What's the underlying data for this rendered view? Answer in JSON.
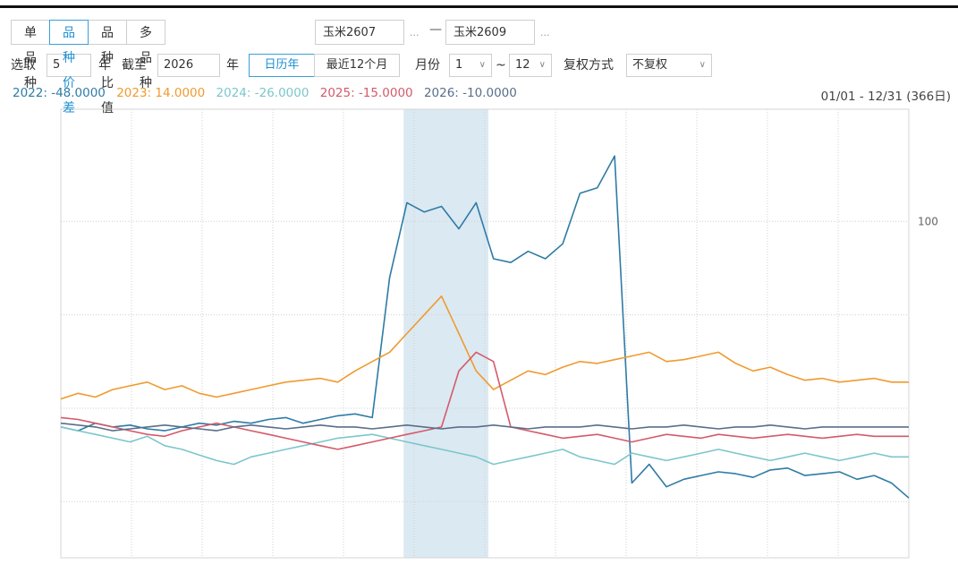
{
  "toolbar": {
    "tabs": [
      "单品种",
      "品种价差",
      "品种比值",
      "多品种"
    ],
    "active_tab": 1,
    "contract_a": "玉米2607",
    "contract_b": "玉米2609",
    "ellipsis": "...",
    "dash": "—"
  },
  "filters": {
    "select_label": "选取",
    "years": "5",
    "year_unit": "年",
    "until_label": "截至",
    "end_year": "2026",
    "end_unit": "年",
    "calendar_btn": "日历年",
    "recent_btn": "最近12个月",
    "month_label": "月份",
    "month_from": "1",
    "tilde": "~",
    "month_to": "12",
    "adjust_label": "复权方式",
    "adjust_value": "不复权"
  },
  "legend": [
    {
      "label": "2022: -48.0000",
      "color": "#2e7ba6"
    },
    {
      "label": "2023: 14.0000",
      "color": "#f09a2e"
    },
    {
      "label": "2024: -26.0000",
      "color": "#7cc6cc"
    },
    {
      "label": "2025: -15.0000",
      "color": "#d45a6a"
    },
    {
      "label": "2026: -10.0000",
      "color": "#5a6e8a"
    }
  ],
  "date_range": "01/01 - 12/31 (366日)",
  "chart_data": {
    "type": "line",
    "y_tick_labels": [
      "100"
    ],
    "ylim": [
      -80,
      160
    ],
    "series": [
      {
        "name": "2022",
        "color": "#2e7ba6",
        "values": [
          -10,
          -12,
          -8,
          -10,
          -9,
          -11,
          -12,
          -10,
          -8,
          -9,
          -7,
          -8,
          -6,
          -5,
          -8,
          -6,
          -4,
          -3,
          -5,
          70,
          110,
          105,
          108,
          96,
          110,
          80,
          78,
          84,
          80,
          88,
          115,
          118,
          135,
          -40,
          -30,
          -42,
          -38,
          -36,
          -34,
          -35,
          -37,
          -33,
          -32,
          -36,
          -35,
          -34,
          -38,
          -36,
          -40,
          -48
        ]
      },
      {
        "name": "2023",
        "color": "#f09a2e",
        "values": [
          5,
          8,
          6,
          10,
          12,
          14,
          10,
          12,
          8,
          6,
          8,
          10,
          12,
          14,
          15,
          16,
          14,
          20,
          25,
          30,
          40,
          50,
          60,
          40,
          20,
          10,
          15,
          20,
          18,
          22,
          25,
          24,
          26,
          28,
          30,
          25,
          26,
          28,
          30,
          24,
          20,
          22,
          18,
          15,
          16,
          14,
          15,
          16,
          14,
          14
        ]
      },
      {
        "name": "2024",
        "color": "#7cc6cc",
        "values": [
          -10,
          -12,
          -14,
          -16,
          -18,
          -15,
          -20,
          -22,
          -25,
          -28,
          -30,
          -26,
          -24,
          -22,
          -20,
          -18,
          -16,
          -15,
          -14,
          -16,
          -18,
          -20,
          -22,
          -24,
          -26,
          -30,
          -28,
          -26,
          -24,
          -22,
          -26,
          -28,
          -30,
          -24,
          -26,
          -28,
          -26,
          -24,
          -22,
          -24,
          -26,
          -28,
          -26,
          -24,
          -26,
          -28,
          -26,
          -24,
          -26,
          -26
        ]
      },
      {
        "name": "2025",
        "color": "#d45a6a",
        "values": [
          -5,
          -6,
          -8,
          -10,
          -12,
          -14,
          -15,
          -12,
          -10,
          -8,
          -10,
          -12,
          -14,
          -16,
          -18,
          -20,
          -22,
          -20,
          -18,
          -16,
          -14,
          -12,
          -10,
          20,
          30,
          25,
          -10,
          -12,
          -14,
          -16,
          -15,
          -14,
          -16,
          -18,
          -16,
          -14,
          -15,
          -16,
          -14,
          -15,
          -16,
          -15,
          -14,
          -15,
          -16,
          -15,
          -14,
          -15,
          -15,
          -15
        ]
      },
      {
        "name": "2026",
        "color": "#5a6e8a",
        "values": [
          -8,
          -9,
          -10,
          -12,
          -11,
          -10,
          -9,
          -10,
          -11,
          -12,
          -10,
          -9,
          -10,
          -11,
          -10,
          -9,
          -10,
          -10,
          -11,
          -10,
          -9,
          -10,
          -11,
          -10,
          -10,
          -9,
          -10,
          -11,
          -10,
          -10,
          -10,
          -9,
          -10,
          -11,
          -10,
          -10,
          -9,
          -10,
          -11,
          -10,
          -10,
          -9,
          -10,
          -11,
          -10,
          -10,
          -10,
          -10,
          -10,
          -10
        ]
      }
    ],
    "highlight_band": [
      0.4,
      0.5
    ],
    "grid": true
  }
}
